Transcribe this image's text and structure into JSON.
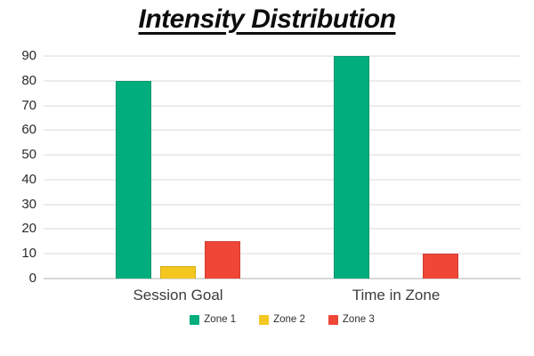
{
  "chart_data": {
    "type": "bar",
    "title": "Intensity Distribution",
    "categories": [
      "Session Goal",
      "Time in Zone"
    ],
    "series": [
      {
        "name": "Zone 1",
        "color": "#00AD7C",
        "values": [
          80,
          90
        ]
      },
      {
        "name": "Zone 2",
        "color": "#F3C71F",
        "values": [
          5,
          0
        ]
      },
      {
        "name": "Zone 3",
        "color": "#EF4638",
        "values": [
          15,
          10
        ]
      }
    ],
    "xlabel": "",
    "ylabel": "",
    "ylim": [
      0,
      90
    ],
    "y_ticks": [
      0,
      10,
      20,
      30,
      40,
      50,
      60,
      70,
      80,
      90
    ],
    "grid": "horizontal",
    "legend_position": "bottom"
  }
}
